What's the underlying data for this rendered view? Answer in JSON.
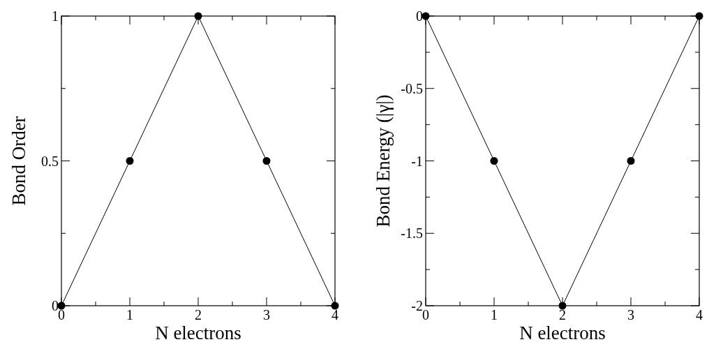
{
  "chart_data": [
    {
      "type": "line",
      "xlabel": "N electrons",
      "ylabel": "Bond Order",
      "x": [
        0,
        1,
        2,
        3,
        4
      ],
      "series": [
        {
          "color": "#000000",
          "values": [
            0,
            0.5,
            1,
            0.5,
            0
          ]
        }
      ],
      "xlim": [
        0,
        4
      ],
      "ylim": [
        0,
        1
      ],
      "xticks": [
        0,
        {
          "value": 0.5,
          "label": null
        },
        1,
        {
          "value": 1.5,
          "label": null
        },
        2,
        {
          "value": 2.5,
          "label": null
        },
        3,
        {
          "value": 3.5,
          "label": null
        },
        4
      ],
      "yticks": [
        0,
        {
          "value": 0.25,
          "label": null
        },
        0.5,
        {
          "value": 0.75,
          "label": null
        },
        1
      ],
      "marker": "circle",
      "line_style": "solid",
      "grid": false
    },
    {
      "type": "line",
      "xlabel": "N electrons",
      "ylabel": "Bond Energy (|γ|)",
      "x": [
        0,
        1,
        2,
        3,
        4
      ],
      "series": [
        {
          "color": "#000000",
          "values": [
            0,
            -1,
            -2,
            -1,
            0
          ]
        }
      ],
      "xlim": [
        0,
        4
      ],
      "ylim": [
        -2,
        0
      ],
      "xticks": [
        0,
        {
          "value": 0.5,
          "label": null
        },
        1,
        {
          "value": 1.5,
          "label": null
        },
        2,
        {
          "value": 2.5,
          "label": null
        },
        3,
        {
          "value": 3.5,
          "label": null
        },
        4
      ],
      "yticks": [
        -2,
        {
          "value": -1.75,
          "label": null
        },
        -1.5,
        {
          "value": -1.25,
          "label": null
        },
        -1,
        {
          "value": -0.75,
          "label": null
        },
        -0.5,
        {
          "value": -0.25,
          "label": null
        },
        0
      ],
      "marker": "circle",
      "line_style": "solid",
      "grid": false
    }
  ]
}
